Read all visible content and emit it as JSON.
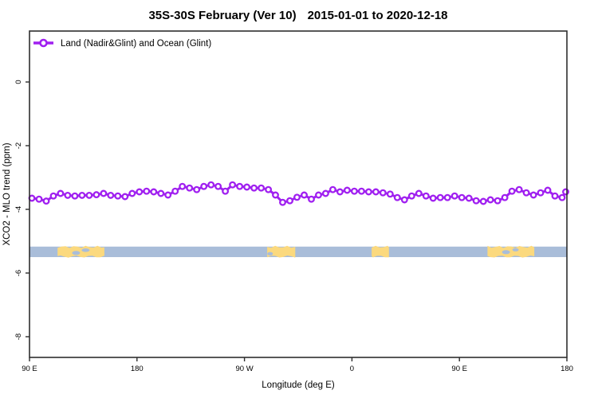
{
  "title": {
    "main": "35S-30S February (Ver 10)",
    "dates": "2015-01-01 to 2020-12-18"
  },
  "legend": {
    "label": "Land (Nadir&Glint) and Ocean (Glint)"
  },
  "axes": {
    "x_label": "Longitude (deg E)",
    "y_label": "XCO2 - MLO trend (ppm)"
  },
  "colors": {
    "series": "#a020f0",
    "marker_fill": "#ffffff",
    "ocean": "#a9bdd9",
    "land": "#fbd97e",
    "frame": "#2e2e2e",
    "text": "#000000"
  },
  "chart_data": {
    "type": "line",
    "title": "35S-30S February (Ver 10)  2015-01-01 to 2020-12-18",
    "xlabel": "Longitude (deg E)",
    "ylabel": "XCO2 - MLO trend (ppm)",
    "xlim": [
      90,
      540
    ],
    "ylim": [
      -8.65,
      1.6
    ],
    "grid": false,
    "legend_position": "top-left",
    "x_ticks": [
      {
        "value": 90,
        "label": "90 E"
      },
      {
        "value": 180,
        "label": "180"
      },
      {
        "value": 270,
        "label": "90 W"
      },
      {
        "value": 360,
        "label": "0"
      },
      {
        "value": 450,
        "label": "90 E"
      },
      {
        "value": 540,
        "label": "180"
      }
    ],
    "y_ticks": [
      {
        "value": 0,
        "label": "0"
      },
      {
        "value": -2,
        "label": "-2"
      },
      {
        "value": -4,
        "label": "-4"
      },
      {
        "value": -6,
        "label": "-6"
      },
      {
        "value": -8,
        "label": "-8"
      }
    ],
    "series": [
      {
        "name": "Land (Nadir&Glint) and Ocean (Glint)",
        "color": "#a020f0",
        "marker": "open-circle",
        "x": [
          92,
          98,
          104,
          110,
          116,
          122,
          128,
          134,
          140,
          146,
          152,
          158,
          164,
          170,
          176,
          182,
          188,
          194,
          200,
          206,
          212,
          218,
          224,
          230,
          236,
          242,
          248,
          254,
          260,
          266,
          272,
          278,
          284,
          290,
          296,
          302,
          308,
          314,
          320,
          326,
          332,
          338,
          344,
          350,
          356,
          362,
          368,
          374,
          380,
          386,
          392,
          398,
          404,
          410,
          416,
          422,
          428,
          434,
          440,
          446,
          452,
          458,
          464,
          470,
          476,
          482,
          488,
          494,
          500,
          506,
          512,
          518,
          524,
          530,
          536,
          539
        ],
        "y": [
          -3.65,
          -3.68,
          -3.74,
          -3.58,
          -3.5,
          -3.56,
          -3.58,
          -3.56,
          -3.56,
          -3.54,
          -3.5,
          -3.56,
          -3.58,
          -3.6,
          -3.5,
          -3.45,
          -3.43,
          -3.45,
          -3.5,
          -3.55,
          -3.43,
          -3.28,
          -3.33,
          -3.38,
          -3.28,
          -3.23,
          -3.28,
          -3.43,
          -3.23,
          -3.28,
          -3.3,
          -3.33,
          -3.33,
          -3.38,
          -3.55,
          -3.78,
          -3.73,
          -3.62,
          -3.55,
          -3.68,
          -3.55,
          -3.5,
          -3.38,
          -3.45,
          -3.4,
          -3.43,
          -3.43,
          -3.45,
          -3.45,
          -3.48,
          -3.52,
          -3.63,
          -3.7,
          -3.58,
          -3.5,
          -3.58,
          -3.65,
          -3.63,
          -3.63,
          -3.58,
          -3.63,
          -3.65,
          -3.73,
          -3.75,
          -3.7,
          -3.73,
          -3.63,
          -3.43,
          -3.38,
          -3.48,
          -3.55,
          -3.48,
          -3.4,
          -3.58,
          -3.63,
          -3.45
        ]
      }
    ],
    "land_ocean_strip": {
      "description": "map strip of 35S-30S latitude band: ocean blue, land yellow",
      "y_top": -5.17,
      "y_bottom": -5.5,
      "ocean_color": "#a9bdd9",
      "land_color": "#fbd97e",
      "land_patches": [
        {
          "name": "australia",
          "lon_start": 113.5,
          "lon_end": 152.7
        },
        {
          "name": "south-america",
          "lon_start": 289.0,
          "lon_end": 312.5
        },
        {
          "name": "southern-africa",
          "lon_start": 376.5,
          "lon_end": 391.0
        },
        {
          "name": "australia-wrap",
          "lon_start": 473.5,
          "lon_end": 512.7
        }
      ],
      "lakes": [
        {
          "lon": 129,
          "dy": 8,
          "rx": 5,
          "ry": 2.5
        },
        {
          "lon": 137,
          "dy": 4.5,
          "rx": 5,
          "ry": 2.2
        },
        {
          "lon": 291.5,
          "dy": 9,
          "rx": 3.5,
          "ry": 2.2
        },
        {
          "lon": 489,
          "dy": 7,
          "rx": 5,
          "ry": 2.5
        },
        {
          "lon": 497,
          "dy": 4,
          "rx": 4,
          "ry": 2.0
        }
      ]
    }
  }
}
